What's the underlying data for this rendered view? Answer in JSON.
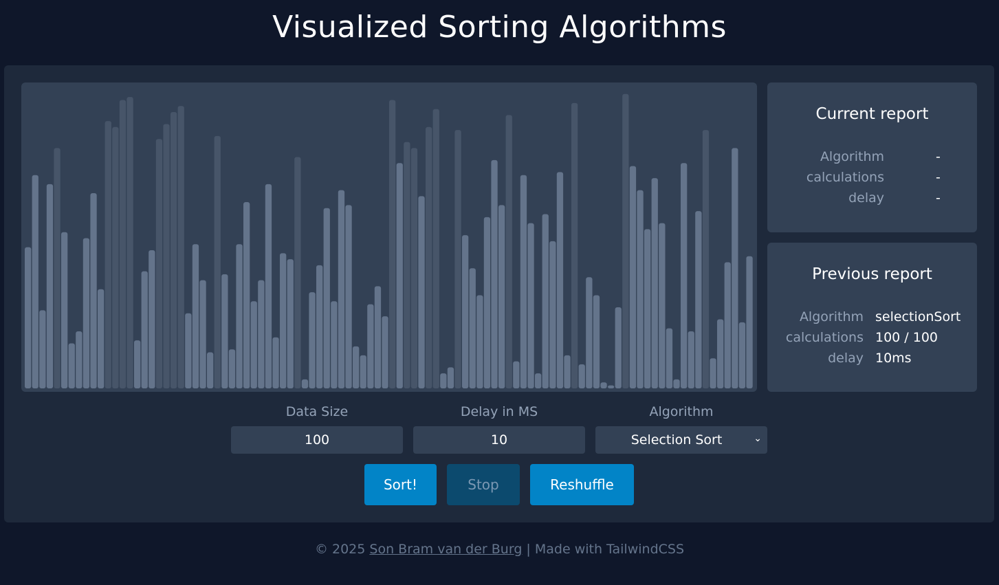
{
  "header": {
    "title": "Visualized Sorting Algorithms"
  },
  "colors": {
    "bar_active": "#64748b",
    "bar_dim": "#475569",
    "accent": "#0284c7"
  },
  "visualizer": {
    "bars": [
      {
        "v": 47,
        "d": 0
      },
      {
        "v": 71,
        "d": 0
      },
      {
        "v": 26,
        "d": 0
      },
      {
        "v": 68,
        "d": 0
      },
      {
        "v": 80,
        "d": 1
      },
      {
        "v": 52,
        "d": 0
      },
      {
        "v": 15,
        "d": 0
      },
      {
        "v": 19,
        "d": 0
      },
      {
        "v": 50,
        "d": 0
      },
      {
        "v": 65,
        "d": 0
      },
      {
        "v": 33,
        "d": 0
      },
      {
        "v": 89,
        "d": 1
      },
      {
        "v": 87,
        "d": 1
      },
      {
        "v": 96,
        "d": 1
      },
      {
        "v": 97,
        "d": 1
      },
      {
        "v": 16,
        "d": 0
      },
      {
        "v": 39,
        "d": 0
      },
      {
        "v": 46,
        "d": 0
      },
      {
        "v": 83,
        "d": 1
      },
      {
        "v": 88,
        "d": 1
      },
      {
        "v": 92,
        "d": 1
      },
      {
        "v": 94,
        "d": 1
      },
      {
        "v": 25,
        "d": 0
      },
      {
        "v": 48,
        "d": 0
      },
      {
        "v": 36,
        "d": 0
      },
      {
        "v": 12,
        "d": 0
      },
      {
        "v": 84,
        "d": 1
      },
      {
        "v": 38,
        "d": 0
      },
      {
        "v": 13,
        "d": 0
      },
      {
        "v": 48,
        "d": 0
      },
      {
        "v": 62,
        "d": 0
      },
      {
        "v": 29,
        "d": 0
      },
      {
        "v": 36,
        "d": 0
      },
      {
        "v": 68,
        "d": 0
      },
      {
        "v": 17,
        "d": 0
      },
      {
        "v": 45,
        "d": 0
      },
      {
        "v": 43,
        "d": 0
      },
      {
        "v": 77,
        "d": 1
      },
      {
        "v": 3,
        "d": 0
      },
      {
        "v": 32,
        "d": 0
      },
      {
        "v": 41,
        "d": 0
      },
      {
        "v": 60,
        "d": 0
      },
      {
        "v": 29,
        "d": 0
      },
      {
        "v": 66,
        "d": 0
      },
      {
        "v": 61,
        "d": 0
      },
      {
        "v": 14,
        "d": 0
      },
      {
        "v": 11,
        "d": 0
      },
      {
        "v": 28,
        "d": 0
      },
      {
        "v": 34,
        "d": 0
      },
      {
        "v": 24,
        "d": 0
      },
      {
        "v": 96,
        "d": 1
      },
      {
        "v": 75,
        "d": 0
      },
      {
        "v": 82,
        "d": 1
      },
      {
        "v": 80,
        "d": 1
      },
      {
        "v": 64,
        "d": 0
      },
      {
        "v": 87,
        "d": 1
      },
      {
        "v": 93,
        "d": 1
      },
      {
        "v": 5,
        "d": 0
      },
      {
        "v": 7,
        "d": 0
      },
      {
        "v": 86,
        "d": 1
      },
      {
        "v": 51,
        "d": 0
      },
      {
        "v": 40,
        "d": 0
      },
      {
        "v": 31,
        "d": 0
      },
      {
        "v": 57,
        "d": 0
      },
      {
        "v": 76,
        "d": 0
      },
      {
        "v": 61,
        "d": 0
      },
      {
        "v": 91,
        "d": 1
      },
      {
        "v": 9,
        "d": 0
      },
      {
        "v": 71,
        "d": 0
      },
      {
        "v": 55,
        "d": 0
      },
      {
        "v": 5,
        "d": 0
      },
      {
        "v": 58,
        "d": 0
      },
      {
        "v": 49,
        "d": 0
      },
      {
        "v": 72,
        "d": 0
      },
      {
        "v": 11,
        "d": 0
      },
      {
        "v": 95,
        "d": 1
      },
      {
        "v": 8,
        "d": 0
      },
      {
        "v": 37,
        "d": 0
      },
      {
        "v": 31,
        "d": 0
      },
      {
        "v": 2,
        "d": 0
      },
      {
        "v": 1,
        "d": 0
      },
      {
        "v": 27,
        "d": 0
      },
      {
        "v": 98,
        "d": 1
      },
      {
        "v": 74,
        "d": 0
      },
      {
        "v": 66,
        "d": 0
      },
      {
        "v": 53,
        "d": 0
      },
      {
        "v": 70,
        "d": 0
      },
      {
        "v": 55,
        "d": 0
      },
      {
        "v": 20,
        "d": 0
      },
      {
        "v": 3,
        "d": 0
      },
      {
        "v": 75,
        "d": 0
      },
      {
        "v": 19,
        "d": 0
      },
      {
        "v": 59,
        "d": 0
      },
      {
        "v": 86,
        "d": 1
      },
      {
        "v": 10,
        "d": 0
      },
      {
        "v": 23,
        "d": 0
      },
      {
        "v": 42,
        "d": 0
      },
      {
        "v": 80,
        "d": 0
      },
      {
        "v": 22,
        "d": 0
      },
      {
        "v": 44,
        "d": 0
      }
    ]
  },
  "current_report": {
    "title": "Current report",
    "rows": [
      {
        "label": "Algorithm",
        "value": "-"
      },
      {
        "label": "calculations",
        "value": "-"
      },
      {
        "label": "delay",
        "value": "-"
      }
    ]
  },
  "previous_report": {
    "title": "Previous report",
    "rows": [
      {
        "label": "Algorithm",
        "value": "selectionSort"
      },
      {
        "label": "calculations",
        "value": "100 / 100"
      },
      {
        "label": "delay",
        "value": "10ms"
      }
    ]
  },
  "controls": {
    "data_size_label": "Data Size",
    "data_size_value": "100",
    "delay_label": "Delay in MS",
    "delay_value": "10",
    "algorithm_label": "Algorithm",
    "algorithm_value": "Selection Sort",
    "sort_label": "Sort!",
    "stop_label": "Stop",
    "reshuffle_label": "Reshuffle"
  },
  "footer": {
    "prefix": "© 2025 ",
    "author": "Son Bram van der Burg",
    "suffix": " | Made with TailwindCSS"
  }
}
